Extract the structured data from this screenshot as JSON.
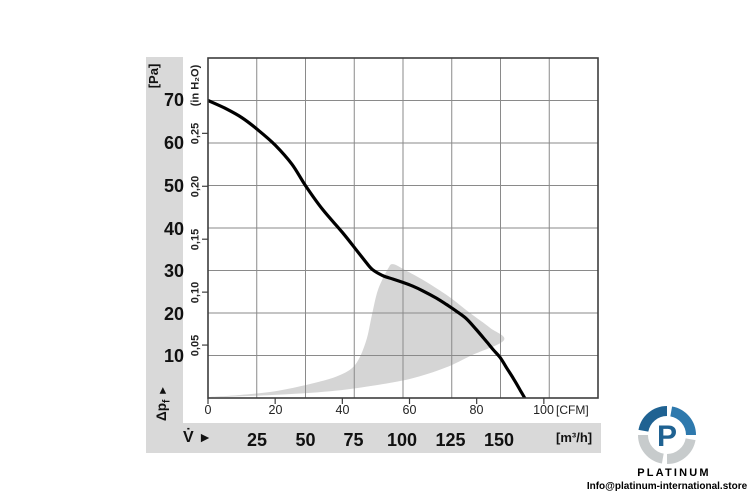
{
  "page": {
    "background": "#ffffff"
  },
  "chart_data": {
    "type": "line",
    "title": "",
    "description": "Fan static pressure vs airflow performance curve with recommended operating range",
    "grid": {
      "x_interval_m3h": 25,
      "y_interval_pa": 10,
      "color": "#8a8a8a",
      "frame_color": "#3d3d3d"
    },
    "y_axis_left": {
      "unit_label": "[Pa]",
      "axis_label": "Δp",
      "axis_label_sub": "f",
      "axis_arrow": "►",
      "range_pa": [
        0,
        80
      ],
      "ticks": [
        "70",
        "60",
        "50",
        "40",
        "30",
        "20",
        "10"
      ],
      "tick_values": [
        70,
        60,
        50,
        40,
        30,
        20,
        10
      ]
    },
    "y_axis_inner": {
      "unit_label": "(in H₂O)",
      "ticks": [
        "0,25",
        "0,20",
        "0,15",
        "0,10",
        "0,05"
      ],
      "tick_values_inh2o": [
        0.25,
        0.2,
        0.15,
        0.1,
        0.05
      ]
    },
    "x_axis_cfm": {
      "unit_label": "[CFM]",
      "ticks": [
        "0",
        "20",
        "40",
        "60",
        "80",
        "100"
      ],
      "tick_values": [
        0,
        20,
        40,
        60,
        80,
        100
      ]
    },
    "x_axis_m3h": {
      "axis_label": "V̇",
      "axis_arrow": "►",
      "unit_label": "[m³/h]",
      "ticks": [
        "25",
        "50",
        "75",
        "100",
        "125",
        "150"
      ],
      "tick_values": [
        25,
        50,
        75,
        100,
        125,
        150
      ]
    },
    "series": [
      {
        "name": "fan-curve",
        "color": "#000000",
        "points_cfm_pa": [
          [
            0,
            70
          ],
          [
            5,
            68.2
          ],
          [
            10,
            66
          ],
          [
            15,
            63
          ],
          [
            20,
            59.5
          ],
          [
            25,
            55
          ],
          [
            29,
            50
          ],
          [
            34,
            44.5
          ],
          [
            40,
            39
          ],
          [
            44,
            35
          ],
          [
            47,
            32
          ],
          [
            49,
            30.2
          ],
          [
            52,
            28.8
          ],
          [
            55,
            28
          ],
          [
            58,
            27.2
          ],
          [
            61,
            26.3
          ],
          [
            64,
            25.2
          ],
          [
            68,
            23.5
          ],
          [
            71,
            22
          ],
          [
            74,
            20.4
          ],
          [
            77,
            18.6
          ],
          [
            80,
            16
          ],
          [
            83,
            13.2
          ],
          [
            85,
            11.3
          ],
          [
            87,
            9.5
          ],
          [
            89,
            7
          ],
          [
            91,
            4.5
          ],
          [
            93,
            1.8
          ],
          [
            94.3,
            0
          ]
        ]
      }
    ],
    "operating_range": {
      "name": "recommended-operating-range",
      "color": "#d5d5d5",
      "points_cfm_pa": [
        [
          0.6,
          0.2
        ],
        [
          19.1,
          0.7
        ],
        [
          36.4,
          1.6
        ],
        [
          48.2,
          2.8
        ],
        [
          60.2,
          4.5
        ],
        [
          70.6,
          7.1
        ],
        [
          78.6,
          10.1
        ],
        [
          88.1,
          13.6
        ],
        [
          84,
          16.5
        ],
        [
          78,
          20
        ],
        [
          71.5,
          24
        ],
        [
          64.6,
          27.5
        ],
        [
          58.7,
          30.1
        ],
        [
          55.1,
          31.5
        ],
        [
          53.6,
          30.4
        ],
        [
          50.6,
          25.4
        ],
        [
          48.8,
          19.5
        ],
        [
          47,
          13.2
        ],
        [
          43.8,
          7.8
        ],
        [
          38.7,
          5.2
        ],
        [
          30.4,
          3.3
        ],
        [
          20,
          1.6
        ],
        [
          9.5,
          0.7
        ]
      ]
    }
  },
  "footer_logo": {
    "brand": "PLATINUM",
    "monogram": "P",
    "email": "Info@platinum-international.store",
    "brand_color": "#1d5e8d",
    "logo_blue_dark": "#1f6292",
    "logo_blue_light": "#2e79ad",
    "logo_gray": "#c7cbcc"
  }
}
